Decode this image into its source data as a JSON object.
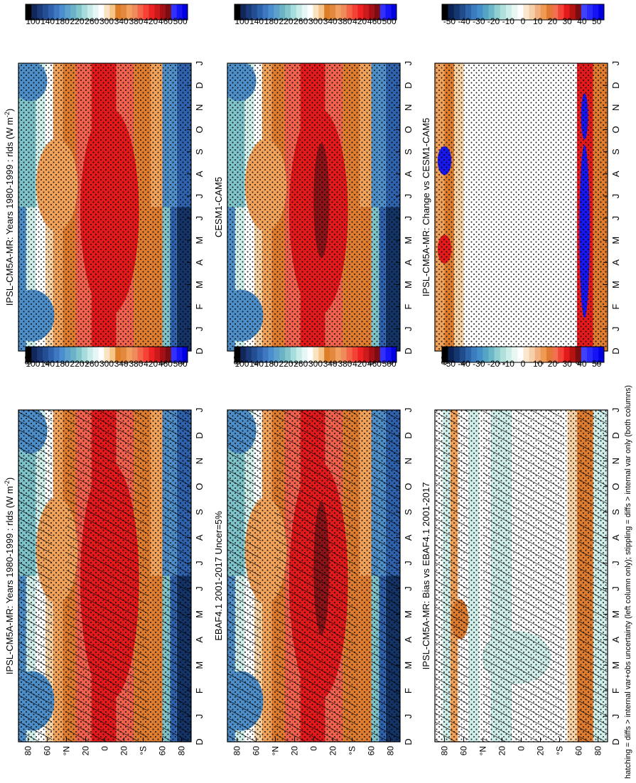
{
  "figure": {
    "footnote": "hatching = diffs > internal var+obs uncertainty (left column only); stippling = diffs > internal var only (both columns)"
  },
  "chart_data": [
    {
      "id": "ipsl-col-left",
      "type": "heatmap",
      "title": "IPSL-CM5A-MR: Years 1980-1999 : rlds (W m",
      "title_superscript": "-2",
      "title_close": ")",
      "x": [
        "D",
        "J",
        "F",
        "M",
        "A",
        "M",
        "J",
        "J",
        "A",
        "S",
        "O",
        "N",
        "D",
        "J"
      ],
      "y_ticks": [
        "80",
        "60",
        "°N",
        "20",
        "0",
        "20",
        "°S",
        "60",
        "80"
      ],
      "y_range": [
        -90,
        90
      ],
      "pattern": "abs",
      "peak": 420,
      "colorbar": {
        "labels": [
          "500",
          "460",
          "420",
          "380",
          "340",
          "300",
          "260",
          "220",
          "180",
          "140",
          "100"
        ],
        "colors": "abs"
      },
      "overlay": "hatch-stipple"
    },
    {
      "id": "obs",
      "type": "heatmap",
      "title": "EBAF4.1 2001-2017 Uncer=5%",
      "x": [
        "D",
        "J",
        "F",
        "M",
        "A",
        "M",
        "J",
        "J",
        "A",
        "S",
        "O",
        "N",
        "D",
        "J"
      ],
      "y_ticks": [
        "80",
        "60",
        "°N",
        "20",
        "0",
        "20",
        "°S",
        "60",
        "80"
      ],
      "y_range": [
        -90,
        90
      ],
      "pattern": "abs",
      "peak": 440,
      "colorbar": {
        "labels": [
          "500",
          "460",
          "420",
          "380",
          "340",
          "300",
          "260",
          "220",
          "180",
          "140",
          "100"
        ],
        "colors": "abs"
      },
      "overlay": "hatch-stipple"
    },
    {
      "id": "bias",
      "type": "heatmap",
      "title": "IPSL-CM5A-MR: Bias vs EBAF4.1 2001-2017",
      "x": [
        "D",
        "J",
        "F",
        "M",
        "A",
        "M",
        "J",
        "J",
        "A",
        "S",
        "O",
        "N",
        "D",
        "J"
      ],
      "y_ticks": [
        "80",
        "60",
        "°N",
        "20",
        "0",
        "20",
        "°S",
        "60",
        "80"
      ],
      "y_range": [
        -90,
        90
      ],
      "pattern": "bias",
      "colorbar": {
        "labels": [
          "50",
          "40",
          "30",
          "20",
          "10",
          "0",
          "-10",
          "-20",
          "-30",
          "-40",
          "-50"
        ],
        "colors": "diff"
      },
      "overlay": "hatch-stipple"
    },
    {
      "id": "ipsl-col-right",
      "type": "heatmap",
      "title": "IPSL-CM5A-MR: Years 1980-1999 : rlds (W m",
      "title_superscript": "-2",
      "title_close": ")",
      "x": [
        "D",
        "J",
        "F",
        "M",
        "A",
        "M",
        "J",
        "J",
        "A",
        "S",
        "O",
        "N",
        "D",
        "J"
      ],
      "y_ticks": [
        "80",
        "60",
        "°N",
        "20",
        "0",
        "20",
        "°S",
        "60",
        "80"
      ],
      "y_range": [
        -90,
        90
      ],
      "pattern": "abs",
      "peak": 420,
      "colorbar": {
        "labels": [
          "500",
          "460",
          "420",
          "380",
          "340",
          "300",
          "260",
          "220",
          "180",
          "140",
          "100"
        ],
        "colors": "abs"
      },
      "overlay": "stipple"
    },
    {
      "id": "cesm",
      "type": "heatmap",
      "title": "CESM1-CAM5",
      "x": [
        "D",
        "J",
        "F",
        "M",
        "A",
        "M",
        "J",
        "J",
        "A",
        "S",
        "O",
        "N",
        "D",
        "J"
      ],
      "y_ticks": [
        "80",
        "60",
        "°N",
        "20",
        "0",
        "20",
        "°S",
        "60",
        "80"
      ],
      "y_range": [
        -90,
        90
      ],
      "pattern": "abs",
      "peak": 440,
      "colorbar": {
        "labels": [
          "500",
          "460",
          "420",
          "380",
          "340",
          "300",
          "260",
          "220",
          "180",
          "140",
          "100"
        ],
        "colors": "abs"
      },
      "overlay": "stipple"
    },
    {
      "id": "change",
      "type": "heatmap",
      "title": "IPSL-CM5A-MR: Change vs CESM1-CAM5",
      "x": [
        "D",
        "J",
        "F",
        "M",
        "A",
        "M",
        "J",
        "J",
        "A",
        "S",
        "O",
        "N",
        "D",
        "J"
      ],
      "y_ticks": [
        "80",
        "60",
        "°N",
        "20",
        "0",
        "20",
        "°S",
        "60",
        "80"
      ],
      "y_range": [
        -90,
        90
      ],
      "pattern": "change",
      "colorbar": {
        "labels": [
          "50",
          "40",
          "30",
          "20",
          "10",
          "0",
          "-10",
          "-20",
          "-30",
          "-40",
          "-50"
        ],
        "colors": "diff"
      },
      "overlay": "stipple"
    }
  ],
  "palettes": {
    "abs": [
      "#0000e0",
      "#1414f4",
      "#3030ff",
      "#7a0d12",
      "#a50f15",
      "#cc1a1a",
      "#ee2222",
      "#f44336",
      "#f36448",
      "#ef8a5b",
      "#f1a060",
      "#e3893e",
      "#dd7f2a",
      "#f5c58a",
      "#fbe3c2",
      "#ffffff",
      "#e6f6f6",
      "#c8ece8",
      "#a6dcdc",
      "#84c6cc",
      "#6cb2c6",
      "#5ca2cc",
      "#4a8ece",
      "#3d78c0",
      "#2f62ad",
      "#244e94",
      "#1a3a78",
      "#12265a",
      "#000000"
    ],
    "diff": [
      "#0000e0",
      "#1414f4",
      "#2a2af8",
      "#4040ff",
      "#7a0d12",
      "#b51212",
      "#e31a1c",
      "#f44336",
      "#f0704f",
      "#e07a34",
      "#ee9a50",
      "#f0b080",
      "#f6d0a8",
      "#fbe6cf",
      "#ffffff",
      "#e8f6f4",
      "#cdeee8",
      "#b0e0dc",
      "#90ced0",
      "#6db8c8",
      "#56a4c4",
      "#4390c8",
      "#3a7cbe",
      "#2c64a8",
      "#204c8c",
      "#153670",
      "#0c2252",
      "#000000"
    ],
    "field": {
      "deep": "#8b1418",
      "red": "#e31a1c",
      "salmon": "#f0614e",
      "orange": "#de7c30",
      "lightorange": "#f0a25a",
      "peach": "#f7d2a5",
      "white": "#ffffff",
      "palecyan": "#cfeeea",
      "teal": "#7cc2c8",
      "steel": "#4d8ec9",
      "blue": "#2f62ad",
      "navy": "#143468",
      "pure": "#1818ee"
    }
  }
}
